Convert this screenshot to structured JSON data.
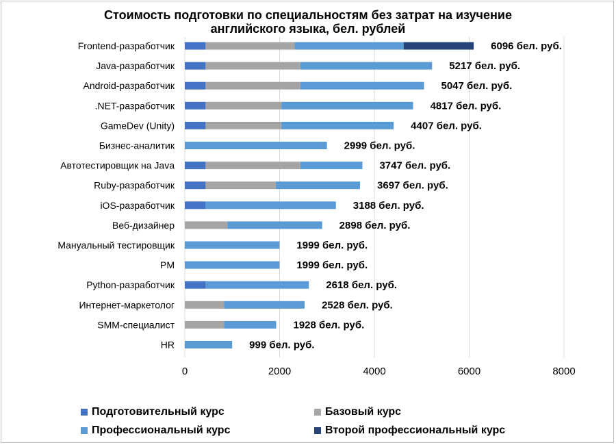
{
  "chart_data": {
    "type": "bar",
    "orientation": "horizontal",
    "stacked": true,
    "title": "Стоимость подготовки по специальностям без затрат на изучение английского языка, бел. рублей",
    "title_lines": [
      "Стоимость подготовки по специальностям без затрат на изучение",
      "английского языка, бел. рублей"
    ],
    "categories": [
      "Frontend-разработчик",
      "Java-разработчик",
      "Android-разработчик",
      ".NET-разработчик",
      "GameDev (Unity)",
      "Бизнес-аналитик",
      "Автотестировщик на Java",
      "Ruby-разработчик",
      "iOS-разработчик",
      "Веб-дизайнер",
      "Мануальный тестировщик",
      "PM",
      "Python-разработчик",
      "Интернет-маркетолог",
      "SMM-специалист",
      "HR"
    ],
    "series": [
      {
        "name": "Подготовительный курс",
        "color": "#4472c4",
        "values": [
          439,
          439,
          439,
          439,
          439,
          0,
          439,
          439,
          439,
          0,
          0,
          0,
          439,
          0,
          0,
          0
        ]
      },
      {
        "name": "Базовый курс",
        "color": "#a5a5a5",
        "values": [
          1879,
          1999,
          1999,
          1599,
          1599,
          0,
          1999,
          1479,
          0,
          899,
          0,
          0,
          0,
          829,
          829,
          0
        ]
      },
      {
        "name": "Профессиональный курс",
        "color": "#5b9bd5",
        "values": [
          2299,
          2779,
          2609,
          2779,
          2369,
          2999,
          1309,
          1779,
          2749,
          1999,
          1999,
          1999,
          2179,
          1699,
          1099,
          999
        ]
      },
      {
        "name": "Второй профессиональный курс",
        "color": "#264478",
        "values": [
          1479,
          0,
          0,
          0,
          0,
          0,
          0,
          0,
          0,
          0,
          0,
          0,
          0,
          0,
          0,
          0
        ]
      }
    ],
    "totals": [
      6096,
      5217,
      5047,
      4817,
      4407,
      2999,
      3747,
      3697,
      3188,
      2898,
      1999,
      1999,
      2618,
      2528,
      1928,
      999
    ],
    "total_labels": [
      "6096 бел. руб.",
      "5217 бел. руб.",
      "5047 бел. руб.",
      "4817 бел. руб.",
      "4407 бел. руб.",
      "2999 бел. руб.",
      "3747 бел. руб.",
      "3697 бел. руб.",
      "3188 бел. руб.",
      "2898 бел. руб.",
      "1999 бел. руб.",
      "1999 бел. руб.",
      "2618 бел. руб.",
      "2528 бел. руб.",
      "1928 бел. руб.",
      "999 бел. руб."
    ],
    "xlim": [
      0,
      8000
    ],
    "xticks": [
      0,
      2000,
      4000,
      6000,
      8000
    ],
    "xtick_labels": [
      "0",
      "2000",
      "4000",
      "6000",
      "8000"
    ],
    "xlabel": "",
    "ylabel": "",
    "grid": true,
    "legend_position": "bottom"
  }
}
